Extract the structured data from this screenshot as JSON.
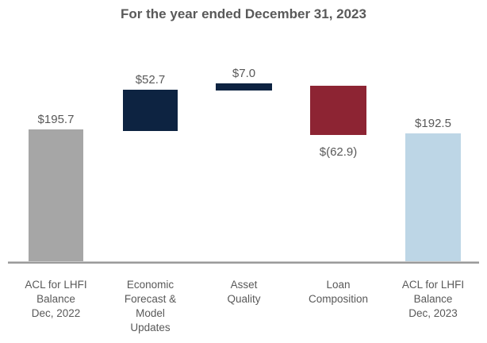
{
  "title": "For the year ended December 31, 2023",
  "colors": {
    "title_text": "#595959",
    "label_text": "#595959",
    "axis_line": "#9b9b9b",
    "bar_gray": "#a6a6a6",
    "bar_navy": "#0d2341",
    "bar_red": "#8d2433",
    "bar_lightblue": "#bdd6e6"
  },
  "chart_data": {
    "type": "bar",
    "subtype": "waterfall",
    "title": "For the year ended December 31, 2023",
    "xlabel": "",
    "ylabel": "",
    "ylim": [
      0,
      270
    ],
    "grid": false,
    "legend": false,
    "categories": [
      "ACL for LHFI Balance Dec, 2022",
      "Economic Forecast & Model Updates",
      "Asset Quality",
      "Loan Composition",
      "ACL for LHFI Balance Dec, 2023"
    ],
    "values": [
      195.7,
      52.7,
      7.0,
      -62.9,
      192.5
    ],
    "bars": [
      {
        "category_lines": [
          "ACL for LHFI",
          "Balance",
          "Dec, 2022"
        ],
        "value": 195.7,
        "value_label": "$195.7",
        "value_label_position": "above",
        "cumulative_start": 0,
        "cumulative_end": 195.7,
        "color": "bar_gray"
      },
      {
        "category_lines": [
          "Economic",
          "Forecast &",
          "Model",
          "Updates"
        ],
        "value": 52.7,
        "value_label": "$52.7",
        "value_label_position": "above",
        "cumulative_start": 195.7,
        "cumulative_end": 248.4,
        "color": "bar_navy"
      },
      {
        "category_lines": [
          "Asset",
          "Quality"
        ],
        "value": 7.0,
        "value_label": "$7.0",
        "value_label_position": "above",
        "cumulative_start": 248.4,
        "cumulative_end": 255.4,
        "color": "bar_navy"
      },
      {
        "category_lines": [
          "Loan",
          "Composition"
        ],
        "value": -62.9,
        "value_label": "$(62.9)",
        "value_label_position": "below",
        "cumulative_start": 255.4,
        "cumulative_end": 192.5,
        "color": "bar_red"
      },
      {
        "category_lines": [
          "ACL for LHFI",
          "Balance",
          "Dec, 2023"
        ],
        "value": 192.5,
        "value_label": "$192.5",
        "value_label_position": "above",
        "cumulative_start": 0,
        "cumulative_end": 192.5,
        "color": "bar_lightblue"
      }
    ]
  }
}
